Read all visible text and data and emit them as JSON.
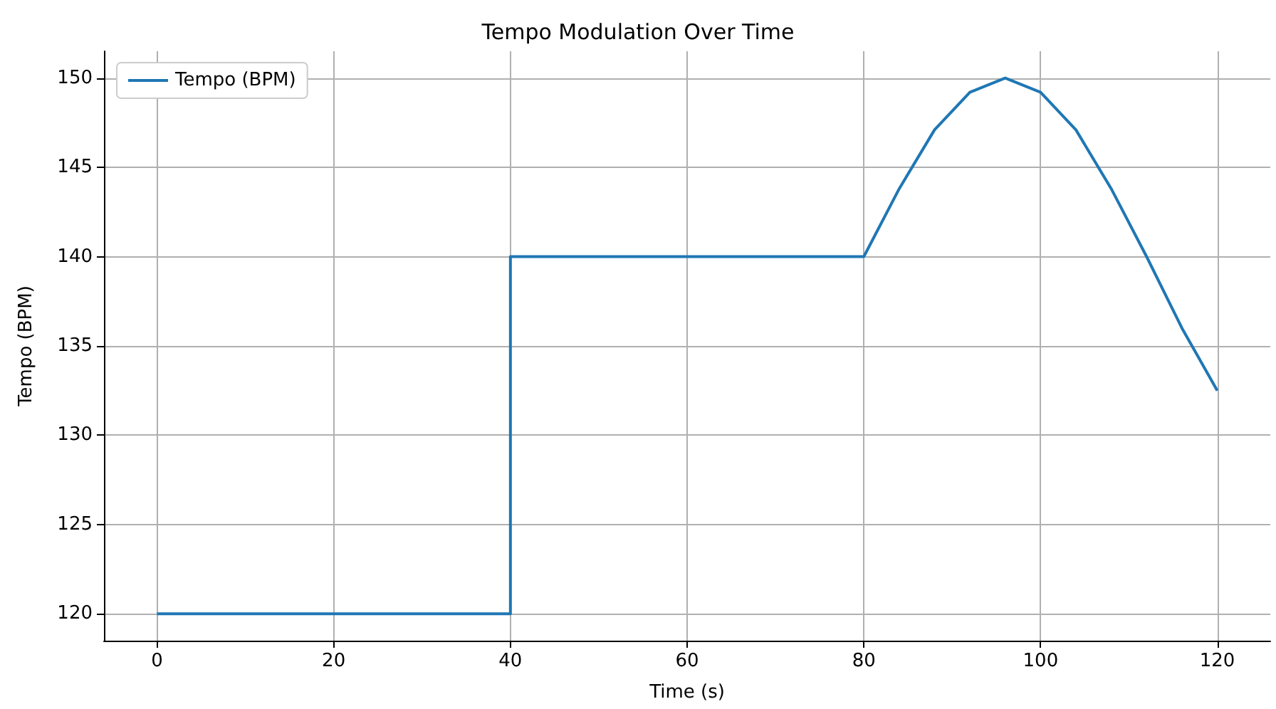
{
  "chart_data": {
    "type": "line",
    "title": "Tempo Modulation Over Time",
    "xlabel": "Time (s)",
    "ylabel": "Tempo (BPM)",
    "series": [
      {
        "name": "Tempo (BPM)",
        "color": "#1f77b4",
        "x": [
          0,
          40,
          40,
          80,
          84,
          88,
          92,
          96,
          100,
          104,
          108,
          112,
          116,
          120
        ],
        "values": [
          120,
          120,
          140,
          140,
          143.8,
          147.1,
          149.2,
          150,
          149.2,
          147.1,
          143.8,
          140,
          136,
          132.5
        ]
      }
    ],
    "xlim": [
      -6,
      126
    ],
    "xticks": [
      0,
      20,
      40,
      60,
      80,
      100,
      120
    ],
    "ylim": [
      118.5,
      151.5
    ],
    "yticks": [
      120,
      125,
      130,
      135,
      140,
      145,
      150
    ],
    "grid": true,
    "legend": "top left",
    "marker": "none",
    "line_style": "solid"
  }
}
